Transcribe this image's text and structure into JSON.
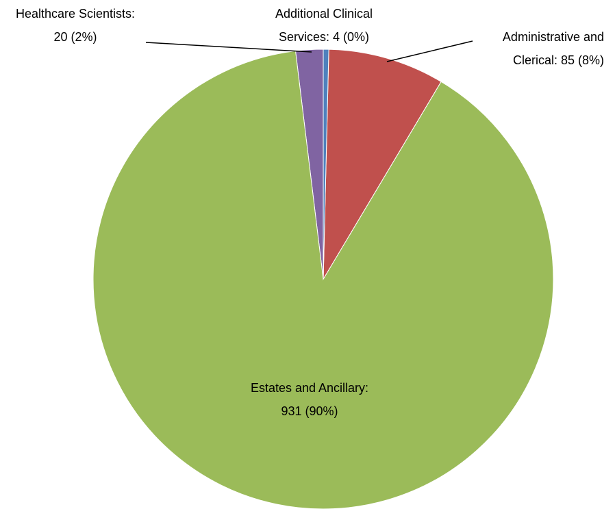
{
  "chart_data": {
    "type": "pie",
    "values": [
      4,
      85,
      931,
      20
    ],
    "value_labels": [
      "Additional Clinical Services: 4 (0%)",
      "Administrative and Clerical: 85 (8%)",
      "Estates and Ancillary: 931 (90%)",
      "Healthcare Scientists: 20 (2%)"
    ],
    "colors": [
      "#4f81bd",
      "#c0504d",
      "#9bbb59",
      "#8064a2"
    ]
  }
}
